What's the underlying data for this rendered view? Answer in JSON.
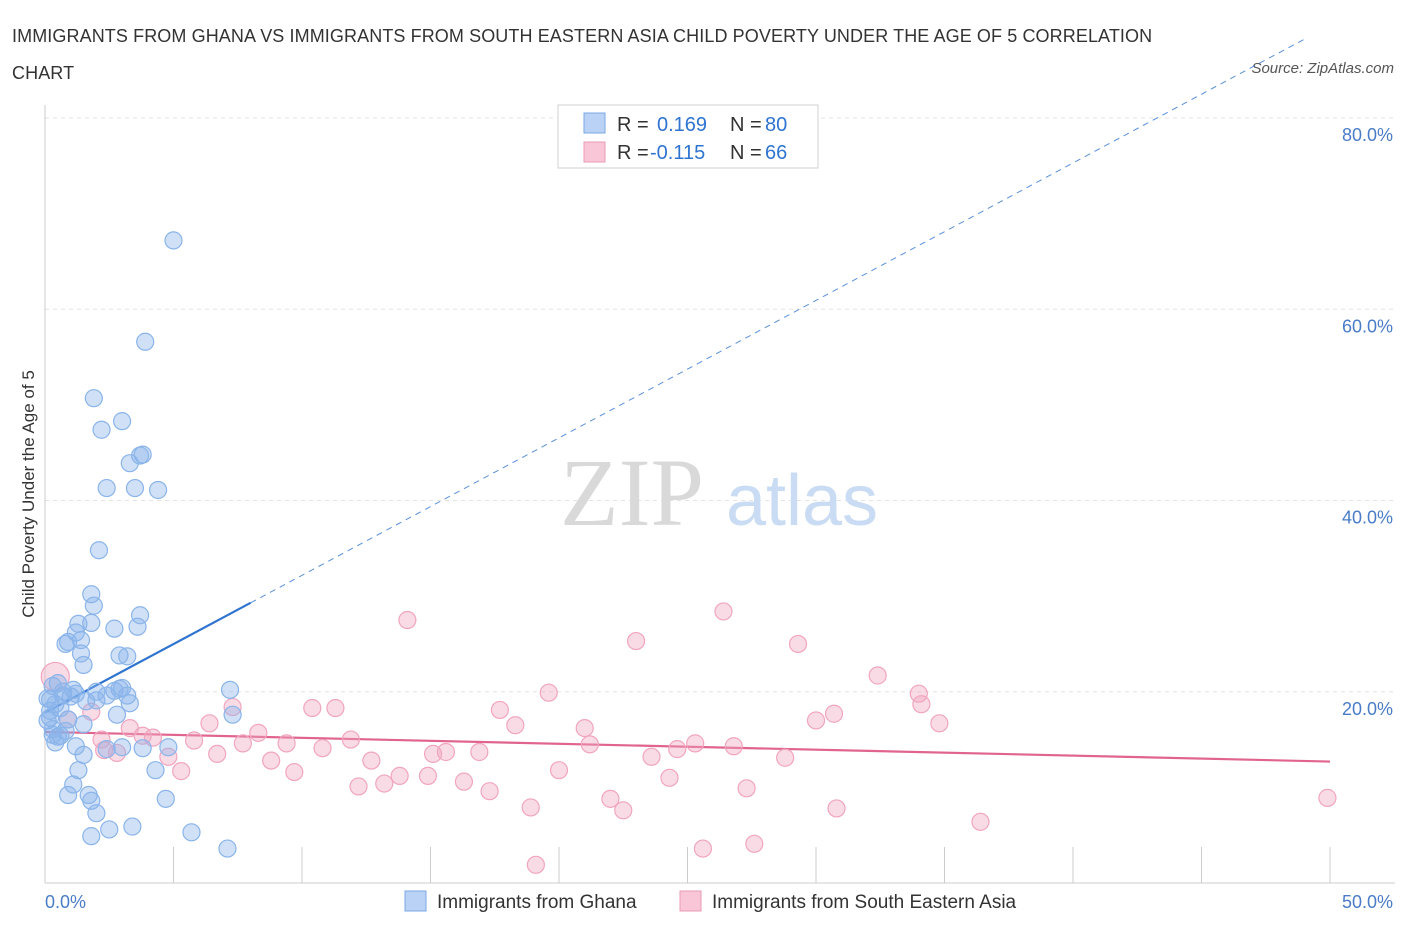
{
  "title": "IMMIGRANTS FROM GHANA VS IMMIGRANTS FROM SOUTH EASTERN ASIA CHILD POVERTY UNDER THE AGE OF 5 CORRELATION CHART",
  "source": "Source: ZipAtlas.com",
  "watermark": {
    "zip": "ZIP",
    "atlas": "atlas"
  },
  "legend": {
    "r_label": "R =",
    "n_label": "N =",
    "series1": {
      "r": "0.169",
      "n": "80"
    },
    "series2": {
      "r": "-0.115",
      "n": "66"
    }
  },
  "chart_data": {
    "type": "scatter",
    "title": "IMMIGRANTS FROM GHANA VS IMMIGRANTS FROM SOUTH EASTERN ASIA CHILD POVERTY UNDER THE AGE OF 5 CORRELATION CHART",
    "xlabel": "",
    "ylabel": "Child Poverty Under the Age of 5",
    "xlim": [
      0,
      50
    ],
    "ylim": [
      0,
      80
    ],
    "x_tick_labels": {
      "min": "0.0%",
      "max": "50.0%"
    },
    "y_ticks": [
      20,
      40,
      60,
      80
    ],
    "y_tick_labels": [
      "20.0%",
      "40.0%",
      "60.0%",
      "80.0%"
    ],
    "grid": true,
    "series": [
      {
        "name": "Immigrants from Ghana",
        "color": "#8ab4ea",
        "line_color": "#2f74d0",
        "R": 0.169,
        "N": 80,
        "trend": {
          "x0": 0,
          "y0": 17.8,
          "x1": 8,
          "y1": 29.3,
          "extend_to_x": 49,
          "dashed_extension": true
        },
        "points": [
          [
            0.2,
            19.2
          ],
          [
            0.3,
            20.6
          ],
          [
            0.4,
            18.7
          ],
          [
            0.2,
            17.3
          ],
          [
            0.3,
            16.1
          ],
          [
            0.5,
            15.3
          ],
          [
            0.6,
            18.3
          ],
          [
            0.7,
            20.0
          ],
          [
            0.8,
            15.9
          ],
          [
            0.9,
            17.1
          ],
          [
            0.4,
            14.7
          ],
          [
            0.6,
            15.4
          ],
          [
            1.0,
            19.5
          ],
          [
            1.1,
            20.2
          ],
          [
            1.2,
            19.8
          ],
          [
            0.8,
            25.0
          ],
          [
            0.9,
            25.2
          ],
          [
            1.4,
            25.4
          ],
          [
            1.2,
            26.2
          ],
          [
            1.3,
            27.1
          ],
          [
            1.5,
            22.8
          ],
          [
            1.4,
            24.0
          ],
          [
            1.8,
            27.2
          ],
          [
            1.9,
            29.0
          ],
          [
            2.0,
            20.0
          ],
          [
            1.8,
            30.2
          ],
          [
            2.7,
            26.6
          ],
          [
            3.6,
            26.8
          ],
          [
            3.7,
            28.0
          ],
          [
            3.2,
            23.7
          ],
          [
            2.9,
            23.8
          ],
          [
            2.9,
            20.3
          ],
          [
            3.0,
            20.4
          ],
          [
            3.2,
            19.6
          ],
          [
            2.8,
            17.6
          ],
          [
            2.4,
            19.6
          ],
          [
            2.7,
            20.1
          ],
          [
            3.3,
            18.8
          ],
          [
            4.8,
            14.2
          ],
          [
            3.8,
            14.1
          ],
          [
            3.0,
            14.2
          ],
          [
            2.4,
            14.0
          ],
          [
            1.2,
            14.3
          ],
          [
            1.5,
            13.4
          ],
          [
            1.1,
            10.3
          ],
          [
            1.3,
            11.8
          ],
          [
            0.9,
            9.2
          ],
          [
            1.7,
            9.2
          ],
          [
            1.8,
            8.6
          ],
          [
            2.0,
            7.3
          ],
          [
            1.8,
            4.9
          ],
          [
            2.5,
            5.6
          ],
          [
            3.4,
            5.9
          ],
          [
            4.3,
            11.8
          ],
          [
            4.7,
            8.8
          ],
          [
            5.7,
            5.3
          ],
          [
            7.1,
            3.6
          ],
          [
            7.2,
            20.2
          ],
          [
            7.3,
            17.6
          ],
          [
            5.0,
            67.2
          ],
          [
            3.9,
            56.6
          ],
          [
            1.9,
            50.7
          ],
          [
            2.2,
            47.4
          ],
          [
            3.0,
            48.3
          ],
          [
            3.3,
            43.9
          ],
          [
            3.8,
            44.8
          ],
          [
            3.7,
            44.7
          ],
          [
            2.4,
            41.3
          ],
          [
            3.5,
            41.3
          ],
          [
            4.4,
            41.1
          ],
          [
            2.1,
            34.8
          ],
          [
            0.1,
            19.3
          ],
          [
            0.2,
            18.0
          ],
          [
            0.1,
            17.0
          ],
          [
            0.3,
            15.5
          ],
          [
            1.6,
            19.0
          ],
          [
            2.0,
            19.1
          ],
          [
            1.5,
            16.6
          ],
          [
            0.5,
            20.9
          ],
          [
            0.7,
            19.6
          ]
        ]
      },
      {
        "name": "Immigrants from South Eastern Asia",
        "color": "#f1a5bf",
        "line_color": "#e0648e",
        "R": -0.115,
        "N": 66,
        "trend": {
          "x0": 0,
          "y0": 15.8,
          "x1": 50,
          "y1": 12.7
        },
        "points": [
          [
            0.4,
            21.6
          ],
          [
            0.9,
            17.1
          ],
          [
            1.8,
            17.9
          ],
          [
            2.2,
            15.0
          ],
          [
            2.8,
            13.6
          ],
          [
            2.3,
            13.9
          ],
          [
            3.3,
            16.2
          ],
          [
            3.8,
            15.4
          ],
          [
            4.2,
            15.2
          ],
          [
            4.8,
            13.2
          ],
          [
            5.3,
            11.7
          ],
          [
            5.8,
            14.9
          ],
          [
            6.4,
            16.7
          ],
          [
            6.7,
            13.5
          ],
          [
            7.3,
            18.4
          ],
          [
            7.7,
            14.6
          ],
          [
            8.3,
            15.7
          ],
          [
            8.8,
            12.8
          ],
          [
            9.4,
            14.6
          ],
          [
            9.7,
            11.6
          ],
          [
            10.4,
            18.3
          ],
          [
            10.8,
            14.1
          ],
          [
            11.3,
            18.3
          ],
          [
            11.9,
            15.0
          ],
          [
            12.2,
            10.1
          ],
          [
            12.7,
            12.8
          ],
          [
            13.2,
            10.4
          ],
          [
            13.8,
            11.2
          ],
          [
            14.1,
            27.5
          ],
          [
            14.9,
            11.2
          ],
          [
            15.1,
            13.5
          ],
          [
            15.6,
            13.7
          ],
          [
            16.3,
            10.6
          ],
          [
            16.9,
            13.7
          ],
          [
            17.3,
            9.6
          ],
          [
            17.7,
            18.1
          ],
          [
            18.3,
            16.5
          ],
          [
            18.9,
            7.9
          ],
          [
            19.1,
            1.9
          ],
          [
            19.6,
            19.9
          ],
          [
            20.0,
            11.8
          ],
          [
            21.0,
            16.2
          ],
          [
            21.2,
            14.5
          ],
          [
            22.0,
            8.8
          ],
          [
            22.5,
            7.6
          ],
          [
            23.0,
            25.3
          ],
          [
            23.6,
            13.2
          ],
          [
            24.3,
            11.0
          ],
          [
            24.6,
            14.0
          ],
          [
            25.3,
            14.6
          ],
          [
            25.6,
            3.6
          ],
          [
            26.4,
            28.4
          ],
          [
            26.8,
            14.3
          ],
          [
            27.3,
            9.9
          ],
          [
            27.6,
            4.1
          ],
          [
            28.8,
            13.1
          ],
          [
            29.3,
            25.0
          ],
          [
            30.0,
            17.0
          ],
          [
            30.8,
            7.8
          ],
          [
            30.7,
            17.7
          ],
          [
            32.4,
            21.7
          ],
          [
            34.0,
            19.8
          ],
          [
            34.1,
            18.7
          ],
          [
            34.8,
            16.7
          ],
          [
            36.4,
            6.4
          ],
          [
            49.9,
            8.9
          ]
        ]
      }
    ]
  },
  "bottom_legend": [
    "Immigrants from Ghana",
    "Immigrants from South Eastern Asia"
  ]
}
